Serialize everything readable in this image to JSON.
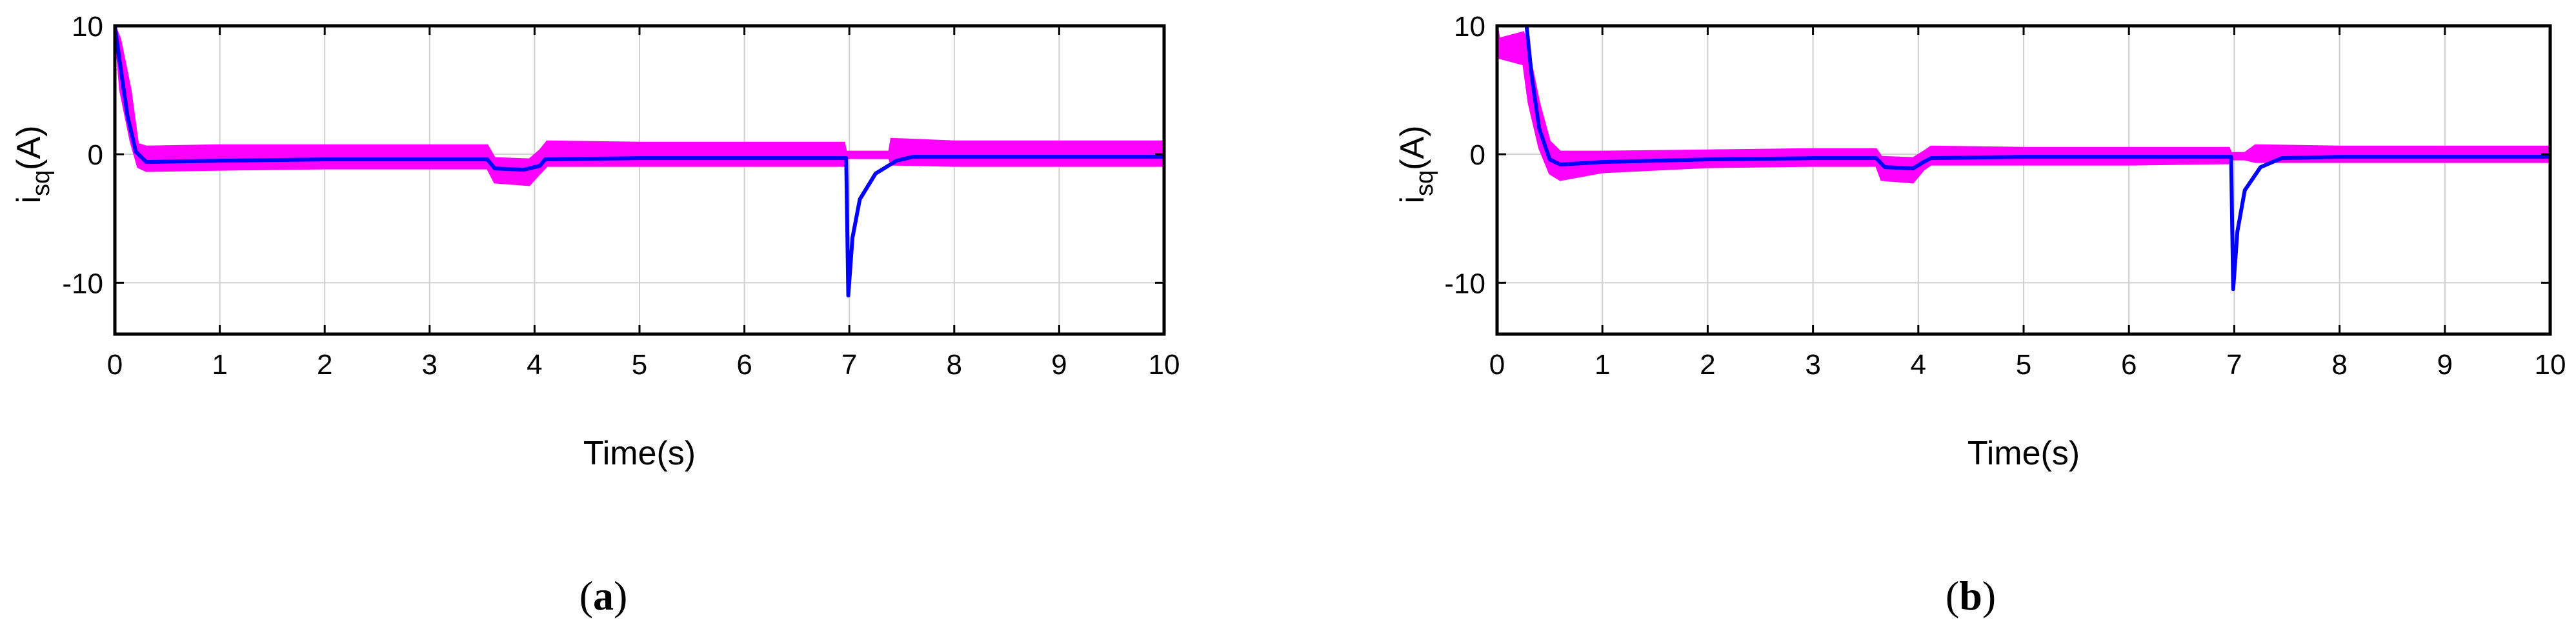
{
  "chart_data": [
    {
      "type": "line",
      "panel_label": "a",
      "ylabel": {
        "main": "i",
        "sub": "sq",
        "unit": "(A)"
      },
      "xlabel": "Time(s)",
      "xlim": [
        0,
        10
      ],
      "ylim": [
        -14,
        10
      ],
      "xticks": [
        "0",
        "1",
        "2",
        "3",
        "4",
        "5",
        "6",
        "7",
        "8",
        "9",
        "10"
      ],
      "yticks": [
        "10",
        "0",
        "-10"
      ],
      "ytick_values": [
        10,
        0,
        -10
      ],
      "grid": true,
      "colors": {
        "reference": "#0000ff",
        "measured": "#ff00ff"
      },
      "series": [
        {
          "role": "reference",
          "points": [
            [
              0,
              10
            ],
            [
              0.05,
              7
            ],
            [
              0.12,
              3
            ],
            [
              0.2,
              0.2
            ],
            [
              0.3,
              -0.6
            ],
            [
              1,
              -0.5
            ],
            [
              2,
              -0.4
            ],
            [
              3,
              -0.4
            ],
            [
              3.55,
              -0.4
            ],
            [
              3.62,
              -1.1
            ],
            [
              3.9,
              -1.2
            ],
            [
              4.05,
              -0.9
            ],
            [
              4.1,
              -0.4
            ],
            [
              5,
              -0.3
            ],
            [
              6,
              -0.3
            ],
            [
              6.97,
              -0.3
            ],
            [
              6.99,
              -11
            ],
            [
              7.03,
              -6.5
            ],
            [
              7.1,
              -3.5
            ],
            [
              7.25,
              -1.5
            ],
            [
              7.45,
              -0.5
            ],
            [
              7.6,
              -0.2
            ],
            [
              8,
              -0.2
            ],
            [
              9,
              -0.2
            ],
            [
              10,
              -0.2
            ]
          ]
        },
        {
          "role": "measured",
          "band": [
            [
              0,
              10,
              10
            ],
            [
              0.05,
              9,
              5
            ],
            [
              0.15,
              5,
              1
            ],
            [
              0.22,
              0.8,
              -1
            ],
            [
              0.3,
              0.6,
              -1.3
            ],
            [
              1,
              0.7,
              -1.2
            ],
            [
              2,
              0.7,
              -1.1
            ],
            [
              3,
              0.7,
              -1.1
            ],
            [
              3.55,
              0.7,
              -1.1
            ],
            [
              3.62,
              -0.3,
              -2.2
            ],
            [
              3.95,
              -0.4,
              -2.4
            ],
            [
              4.05,
              0.3,
              -1.5
            ],
            [
              4.12,
              1,
              -0.9
            ],
            [
              5,
              0.9,
              -0.9
            ],
            [
              6,
              0.9,
              -0.9
            ],
            [
              6.95,
              0.9,
              -0.9
            ],
            [
              6.97,
              0.2,
              -0.3
            ],
            [
              7.38,
              0.2,
              -0.3
            ],
            [
              7.4,
              1.2,
              -0.8
            ],
            [
              8,
              1,
              -0.9
            ],
            [
              9,
              1,
              -0.9
            ],
            [
              10,
              1,
              -0.9
            ]
          ]
        }
      ]
    },
    {
      "type": "line",
      "panel_label": "b",
      "ylabel": {
        "main": "i",
        "sub": "sq",
        "unit": "(A)"
      },
      "xlabel": "Time(s)",
      "xlim": [
        0,
        10
      ],
      "ylim": [
        -14,
        10
      ],
      "xticks": [
        "0",
        "1",
        "2",
        "3",
        "4",
        "5",
        "6",
        "7",
        "8",
        "9",
        "10"
      ],
      "yticks": [
        "10",
        "0",
        "-10"
      ],
      "ytick_values": [
        10,
        0,
        -10
      ],
      "grid": true,
      "colors": {
        "reference": "#0000ff",
        "measured": "#ff00ff"
      },
      "series": [
        {
          "role": "reference",
          "points": [
            [
              0.28,
              10
            ],
            [
              0.33,
              6
            ],
            [
              0.4,
              2
            ],
            [
              0.5,
              -0.4
            ],
            [
              0.6,
              -0.8
            ],
            [
              1,
              -0.6
            ],
            [
              2,
              -0.4
            ],
            [
              3,
              -0.3
            ],
            [
              3.6,
              -0.3
            ],
            [
              3.68,
              -1
            ],
            [
              3.95,
              -1.1
            ],
            [
              4.05,
              -0.6
            ],
            [
              4.12,
              -0.3
            ],
            [
              5,
              -0.2
            ],
            [
              6,
              -0.2
            ],
            [
              6.97,
              -0.2
            ],
            [
              6.99,
              -10.5
            ],
            [
              7.03,
              -6
            ],
            [
              7.1,
              -2.8
            ],
            [
              7.25,
              -1
            ],
            [
              7.45,
              -0.3
            ],
            [
              8,
              -0.2
            ],
            [
              9,
              -0.2
            ],
            [
              10,
              -0.2
            ]
          ]
        },
        {
          "role": "measured",
          "band": [
            [
              0,
              10,
              10
            ],
            [
              0.02,
              9,
              7.5
            ],
            [
              0.25,
              9.5,
              7
            ],
            [
              0.3,
              8,
              4
            ],
            [
              0.4,
              4,
              0.5
            ],
            [
              0.5,
              1,
              -1.5
            ],
            [
              0.6,
              0.2,
              -2
            ],
            [
              1,
              0.2,
              -1.4
            ],
            [
              2,
              0.3,
              -1
            ],
            [
              3,
              0.4,
              -0.9
            ],
            [
              3.6,
              0.4,
              -0.9
            ],
            [
              3.65,
              -0.2,
              -2
            ],
            [
              3.95,
              -0.3,
              -2.2
            ],
            [
              4.05,
              0.2,
              -1.2
            ],
            [
              4.12,
              0.6,
              -0.8
            ],
            [
              5,
              0.5,
              -0.8
            ],
            [
              6,
              0.5,
              -0.8
            ],
            [
              6.95,
              0.5,
              -0.7
            ],
            [
              6.97,
              0.1,
              -0.4
            ],
            [
              7.1,
              0.1,
              -0.4
            ],
            [
              7.2,
              0.7,
              -0.6
            ],
            [
              8,
              0.6,
              -0.6
            ],
            [
              9,
              0.6,
              -0.6
            ],
            [
              10,
              0.6,
              -0.6
            ]
          ]
        }
      ]
    }
  ]
}
